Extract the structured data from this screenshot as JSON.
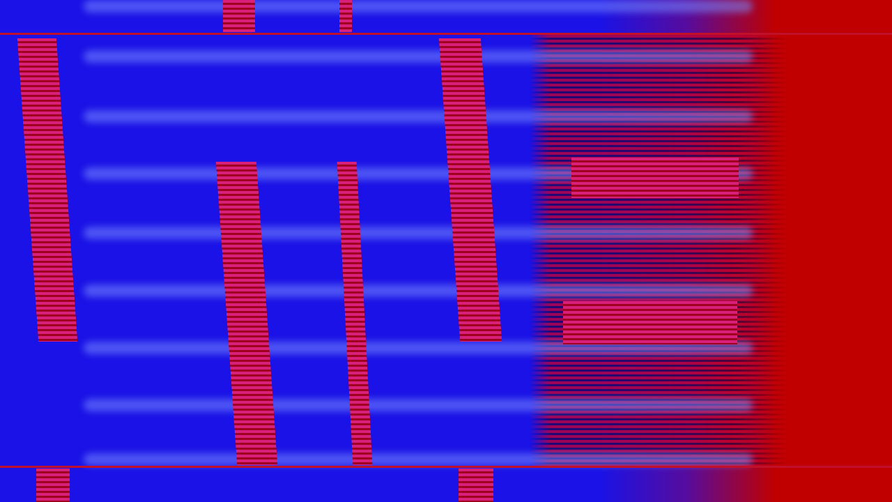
{
  "colors": {
    "background": "#1a12e6",
    "band": "#788cff",
    "stripe_pink": "#d8207a",
    "stripe_red": "#a00020",
    "field_red": "#c00000"
  }
}
